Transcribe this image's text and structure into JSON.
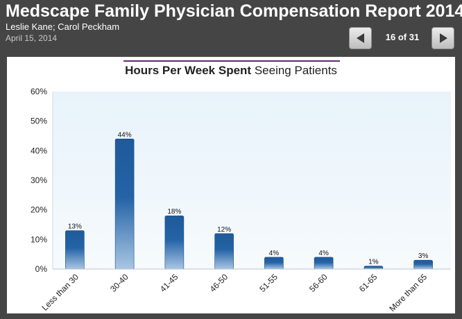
{
  "header": {
    "title": "Medscape Family Physician Compensation Report 2014",
    "authors": "Leslie Kane; Carol Peckham",
    "date": "April 15, 2014"
  },
  "navigation": {
    "prev_icon": "triangle-left-icon",
    "next_icon": "triangle-right-icon",
    "current": "16",
    "total": "31",
    "counter_text": "16 of 31"
  },
  "chart_data": {
    "type": "bar",
    "title_bold": "Hours Per Week Spent",
    "title_rest": "Seeing Patients",
    "categories": [
      "Less than 30",
      "30-40",
      "41-45",
      "46-50",
      "51-55",
      "56-60",
      "61-65",
      "More than 65"
    ],
    "values": [
      13,
      44,
      18,
      12,
      4,
      4,
      1,
      3
    ],
    "value_labels": [
      "13%",
      "44%",
      "18%",
      "12%",
      "4%",
      "4%",
      "1%",
      "3%"
    ],
    "ylim": [
      0,
      60
    ],
    "yticks": [
      0,
      10,
      20,
      30,
      40,
      50,
      60
    ],
    "ytick_labels": [
      "0%",
      "10%",
      "20%",
      "30%",
      "40%",
      "50%",
      "60%"
    ],
    "grid": false,
    "bar_color": "#1f5a9a"
  }
}
